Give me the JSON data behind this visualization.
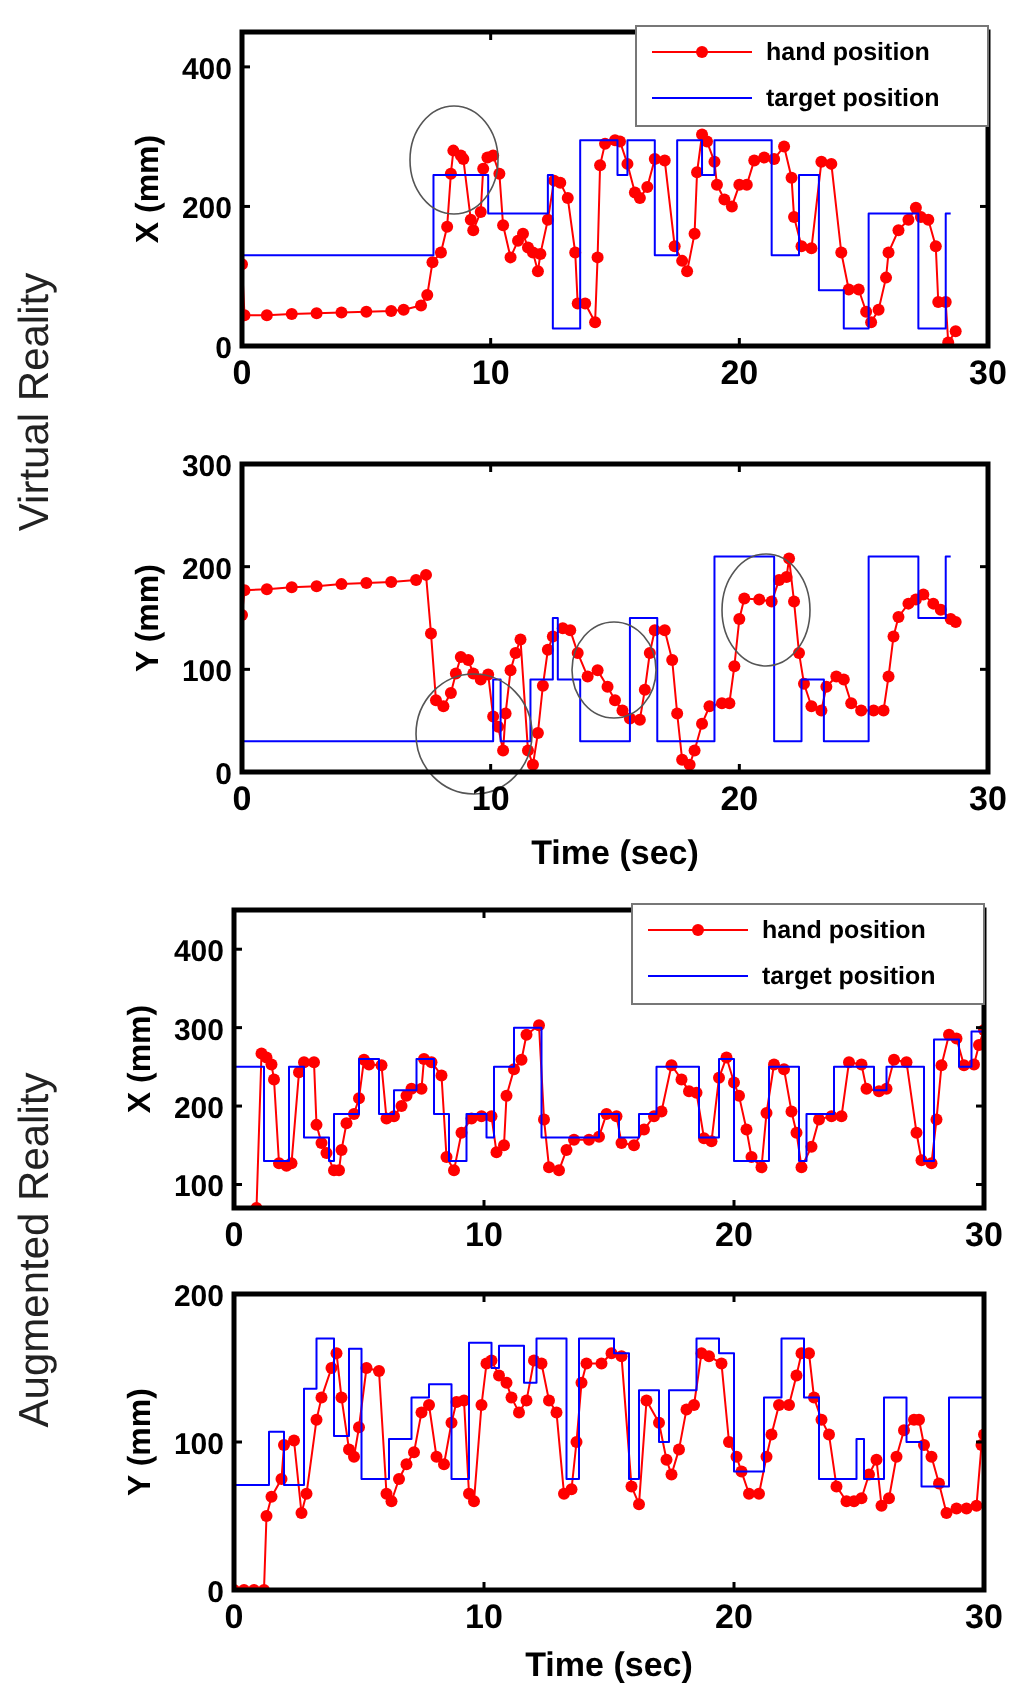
{
  "chart_data": [
    {
      "type": "line",
      "ylabel": "X (mm)",
      "xlim": [
        0,
        30
      ],
      "xticks": [
        0,
        10,
        20,
        30
      ],
      "ylim": [
        0,
        450
      ],
      "yticks": [
        0,
        200,
        400
      ],
      "legend": "top right",
      "annotations": [
        "Virtual Reality"
      ],
      "series": [
        {
          "name": "hand position",
          "color": "#ff0000",
          "marker": "circle",
          "x": [
            0,
            0.1,
            1,
            2,
            3,
            4,
            5,
            6,
            6.5,
            7.2,
            7.45,
            7.66,
            8.0,
            8.25,
            8.4,
            8.5,
            8.8,
            8.9,
            9.2,
            9.3,
            9.6,
            9.7,
            9.87,
            10.1,
            10.35,
            10.5,
            10.8,
            11.1,
            11.3,
            11.5,
            11.7,
            11.9,
            12.0,
            12.3,
            12.55,
            12.8,
            13.1,
            13.4,
            13.5,
            13.8,
            14.2,
            14.3,
            14.4,
            14.6,
            15.0,
            15.2,
            15.5,
            15.8,
            16.0,
            16.3,
            16.6,
            17.0,
            17.4,
            17.7,
            17.9,
            18.2,
            18.3,
            18.5,
            18.7,
            19.0,
            19.1,
            19.4,
            19.7,
            20.0,
            20.3,
            20.6,
            21.0,
            21.4,
            21.8,
            22.1,
            22.2,
            22.5,
            22.9,
            23.3,
            23.7,
            24.1,
            24.4,
            24.8,
            25.1,
            25.3,
            25.6,
            25.9,
            26.0,
            26.4,
            26.8,
            27.1,
            27.3,
            27.6,
            27.9,
            28.0,
            28.3,
            28.4,
            28.7
          ],
          "values": [
            117,
            44,
            44,
            46,
            47,
            48,
            49,
            50,
            52,
            58,
            73,
            120,
            134,
            171,
            247,
            280,
            273,
            268,
            181,
            166,
            192,
            254,
            270,
            273,
            247,
            173,
            127,
            151,
            161,
            141,
            134,
            107,
            132,
            181,
            237,
            234,
            212,
            134,
            61,
            61,
            34,
            127,
            259,
            290,
            295,
            293,
            261,
            220,
            212,
            228,
            268,
            266,
            143,
            122,
            107,
            161,
            249,
            303,
            293,
            264,
            231,
            210,
            200,
            231,
            231,
            266,
            270,
            268,
            286,
            241,
            185,
            143,
            140,
            264,
            261,
            134,
            81,
            81,
            49,
            34,
            52,
            98,
            134,
            166,
            181,
            198,
            185,
            181,
            143,
            63,
            63,
            5,
            21
          ]
        },
        {
          "name": "target position",
          "color": "#0000ff",
          "type": "step",
          "marker": "none",
          "x": [
            0,
            7.7,
            9.9,
            12.3,
            12.5,
            13.6,
            15.1,
            15.5,
            16.6,
            17.5,
            18.5,
            19.0,
            21.3,
            22.4,
            23.2,
            24.2,
            25.2,
            27.2,
            28.3,
            28.5
          ],
          "values": [
            130,
            245,
            190,
            245,
            25,
            295,
            245,
            295,
            130,
            295,
            245,
            295,
            130,
            245,
            80,
            25,
            190,
            25,
            190,
            190
          ]
        }
      ]
    },
    {
      "type": "line",
      "xlabel": "Time (sec)",
      "ylabel": "Y (mm)",
      "xlim": [
        0,
        30
      ],
      "xticks": [
        0,
        10,
        20,
        30
      ],
      "ylim": [
        0,
        300
      ],
      "yticks": [
        0,
        100,
        200,
        300
      ],
      "series": [
        {
          "color": "#ff0000",
          "marker": "circle",
          "x": [
            0,
            0.1,
            1,
            2,
            3,
            4,
            5,
            6,
            7,
            7.4,
            7.6,
            7.8,
            8.1,
            8.4,
            8.6,
            8.8,
            9.1,
            9.3,
            9.6,
            9.9,
            10.1,
            10.3,
            10.5,
            10.6,
            10.8,
            11.0,
            11.2,
            11.5,
            11.7,
            11.9,
            12.1,
            12.3,
            12.5,
            12.9,
            13.2,
            13.5,
            13.9,
            14.3,
            14.7,
            15.0,
            15.3,
            15.6,
            16.0,
            16.2,
            16.4,
            16.6,
            17.0,
            17.3,
            17.5,
            17.7,
            18.0,
            18.2,
            18.5,
            18.8,
            19.3,
            19.6,
            19.8,
            20.0,
            20.2,
            20.8,
            21.3,
            21.6,
            21.9,
            22.0,
            22.2,
            22.4,
            22.6,
            22.9,
            23.3,
            23.5,
            23.9,
            24.2,
            24.5,
            24.9,
            25.4,
            25.8,
            26.0,
            26.2,
            26.4,
            26.8,
            27.1,
            27.4,
            27.8,
            28.1,
            28.5,
            28.7
          ],
          "values": [
            153,
            177,
            178,
            180,
            181,
            183,
            184,
            185,
            187,
            192,
            135,
            70,
            64,
            77,
            96,
            112,
            109,
            96,
            90,
            95,
            54,
            44,
            21,
            57,
            99,
            116,
            129,
            21,
            7,
            38,
            84,
            119,
            132,
            140,
            138,
            116,
            93,
            99,
            83,
            70,
            60,
            52,
            51,
            80,
            116,
            138,
            138,
            109,
            57,
            12,
            7,
            21,
            47,
            64,
            67,
            67,
            103,
            149,
            169,
            168,
            166,
            187,
            190,
            208,
            166,
            116,
            86,
            64,
            60,
            83,
            93,
            90,
            67,
            60,
            60,
            60,
            93,
            132,
            151,
            164,
            168,
            173,
            164,
            158,
            149,
            146
          ]
        },
        {
          "color": "#0000ff",
          "type": "step",
          "marker": "none",
          "x": [
            0,
            10.1,
            10.4,
            11.6,
            12.5,
            12.7,
            13.6,
            15.6,
            16.7,
            19.0,
            21.4,
            22.5,
            23.4,
            25.2,
            27.2,
            28.3,
            28.5
          ],
          "values": [
            30,
            90,
            30,
            90,
            150,
            90,
            30,
            150,
            30,
            210,
            30,
            90,
            30,
            210,
            150,
            210,
            210
          ]
        }
      ]
    },
    {
      "type": "line",
      "ylabel": "X (mm)",
      "xlim": [
        0,
        30
      ],
      "xticks": [
        0,
        10,
        20,
        30
      ],
      "ylim": [
        70,
        450
      ],
      "yticks": [
        100,
        200,
        300,
        400
      ],
      "legend": "top right",
      "annotations": [
        "Augmented Reality"
      ],
      "series": [
        {
          "name": "hand position",
          "color": "#ff0000",
          "marker": "circle",
          "x": [
            0.9,
            1.1,
            1.3,
            1.5,
            1.6,
            1.8,
            2.1,
            2.3,
            2.6,
            2.8,
            3.2,
            3.3,
            3.5,
            3.7,
            4.0,
            4.2,
            4.3,
            4.5,
            4.8,
            5.0,
            5.2,
            5.4,
            5.9,
            6.1,
            6.4,
            6.7,
            6.9,
            7.1,
            7.5,
            7.6,
            7.9,
            8.3,
            8.5,
            8.8,
            9.1,
            9.5,
            9.9,
            10.3,
            10.5,
            10.8,
            10.9,
            11.2,
            11.5,
            11.7,
            12.2,
            12.4,
            12.6,
            13.0,
            13.3,
            13.6,
            14.2,
            14.6,
            14.9,
            15.3,
            15.5,
            16.0,
            16.4,
            16.8,
            17.1,
            17.5,
            17.9,
            18.2,
            18.5,
            18.8,
            19.1,
            19.4,
            19.7,
            20.0,
            20.2,
            20.5,
            20.7,
            21.1,
            21.3,
            21.6,
            22.0,
            22.3,
            22.5,
            22.7,
            23.1,
            23.4,
            23.9,
            24.3,
            24.6,
            25.1,
            25.3,
            25.8,
            26.1,
            26.4,
            26.9,
            27.3,
            27.5,
            27.9,
            28.1,
            28.3,
            28.6,
            28.9,
            29.2,
            29.6,
            29.8,
            30.0
          ],
          "values": [
            70,
            267,
            262,
            253,
            234,
            127,
            124,
            127,
            243,
            256,
            256,
            176,
            153,
            140,
            118,
            118,
            144,
            178,
            190,
            210,
            259,
            253,
            252,
            184,
            187,
            200,
            213,
            222,
            222,
            260,
            256,
            239,
            135,
            118,
            166,
            184,
            187,
            187,
            141,
            150,
            213,
            247,
            259,
            291,
            303,
            183,
            122,
            118,
            144,
            157,
            157,
            161,
            190,
            187,
            153,
            150,
            170,
            187,
            193,
            252,
            234,
            219,
            217,
            159,
            155,
            236,
            262,
            230,
            213,
            170,
            135,
            122,
            191,
            253,
            247,
            193,
            166,
            122,
            148,
            183,
            187,
            187,
            256,
            253,
            222,
            219,
            222,
            259,
            256,
            166,
            131,
            127,
            183,
            252,
            291,
            286,
            252,
            253,
            278,
            297
          ]
        },
        {
          "name": "target position",
          "color": "#0000ff",
          "type": "step",
          "marker": "none",
          "x": [
            0,
            1.2,
            2.2,
            2.8,
            3.8,
            4.0,
            5.0,
            5.8,
            6.4,
            7.3,
            8.0,
            8.6,
            9.3,
            10.1,
            10.4,
            11.2,
            12.3,
            14.6,
            15.4,
            16.2,
            16.9,
            18.6,
            19.4,
            20.0,
            21.4,
            22.6,
            22.9,
            24.0,
            25.6,
            26.1,
            27.6,
            28.0,
            29.0,
            29.5,
            30
          ],
          "values": [
            250,
            130,
            250,
            160,
            130,
            190,
            260,
            190,
            220,
            260,
            190,
            130,
            190,
            160,
            250,
            300,
            160,
            190,
            160,
            190,
            250,
            160,
            260,
            130,
            250,
            130,
            190,
            250,
            220,
            250,
            130,
            285,
            250,
            295,
            295
          ]
        }
      ]
    },
    {
      "type": "line",
      "xlabel": "Time (sec)",
      "ylabel": "Y (mm)",
      "xlim": [
        0,
        30
      ],
      "xticks": [
        0,
        10,
        20,
        30
      ],
      "ylim": [
        0,
        200
      ],
      "yticks": [
        0,
        100,
        200
      ],
      "series": [
        {
          "color": "#ff0000",
          "marker": "circle",
          "x": [
            0,
            0.4,
            0.8,
            1.2,
            1.3,
            1.5,
            1.9,
            2.0,
            2.4,
            2.7,
            2.9,
            3.3,
            3.5,
            3.9,
            4.1,
            4.3,
            4.6,
            4.8,
            5.0,
            5.3,
            5.8,
            6.1,
            6.3,
            6.6,
            6.9,
            7.2,
            7.5,
            7.8,
            8.1,
            8.4,
            8.7,
            8.9,
            9.2,
            9.4,
            9.6,
            9.9,
            10.1,
            10.3,
            10.6,
            10.9,
            11.1,
            11.4,
            11.7,
            12.0,
            12.3,
            12.6,
            12.9,
            13.2,
            13.5,
            13.7,
            13.9,
            14.1,
            14.7,
            15.1,
            15.5,
            15.9,
            16.2,
            16.5,
            17.0,
            17.3,
            17.5,
            17.8,
            18.1,
            18.4,
            18.7,
            19.0,
            19.5,
            19.8,
            20.1,
            20.3,
            20.6,
            21.0,
            21.3,
            21.5,
            21.8,
            22.2,
            22.5,
            22.7,
            23.0,
            23.2,
            23.5,
            23.8,
            24.1,
            24.5,
            24.8,
            25.1,
            25.4,
            25.7,
            25.9,
            26.2,
            26.5,
            26.8,
            27.2,
            27.4,
            27.6,
            27.9,
            28.2,
            28.5,
            28.9,
            29.3,
            29.7,
            29.9,
            30.0
          ],
          "values": [
            0,
            0,
            0,
            0,
            50,
            63,
            75,
            98,
            101,
            52,
            65,
            115,
            130,
            150,
            160,
            130,
            95,
            90,
            110,
            150,
            148,
            65,
            60,
            75,
            85,
            93,
            120,
            125,
            90,
            85,
            113,
            127,
            128,
            65,
            60,
            125,
            153,
            155,
            145,
            140,
            130,
            120,
            128,
            155,
            153,
            128,
            120,
            65,
            68,
            100,
            140,
            153,
            153,
            160,
            158,
            70,
            58,
            128,
            113,
            88,
            78,
            95,
            122,
            125,
            160,
            158,
            153,
            100,
            90,
            80,
            65,
            65,
            90,
            105,
            125,
            125,
            145,
            160,
            160,
            130,
            115,
            105,
            70,
            60,
            60,
            62,
            78,
            88,
            57,
            62,
            90,
            108,
            115,
            115,
            98,
            90,
            72,
            52,
            55,
            55,
            57,
            98,
            105
          ]
        },
        {
          "color": "#0000ff",
          "type": "step",
          "marker": "none",
          "x": [
            0,
            1.4,
            2.0,
            2.8,
            3.3,
            4.0,
            4.6,
            5.1,
            6.2,
            7.1,
            7.8,
            8.7,
            9.4,
            10.3,
            10.6,
            11.6,
            12.1,
            13.3,
            13.8,
            15.2,
            15.8,
            16.2,
            17.0,
            17.4,
            18.5,
            19.4,
            20.0,
            21.2,
            21.9,
            22.8,
            23.4,
            24.9,
            25.2,
            26.0,
            26.9,
            27.5,
            28.6,
            30
          ],
          "values": [
            71,
            107,
            71,
            136,
            170,
            104,
            163,
            75,
            102,
            130,
            139,
            75,
            167,
            150,
            165,
            140,
            170,
            75,
            170,
            160,
            75,
            135,
            100,
            135,
            170,
            160,
            80,
            130,
            170,
            130,
            75,
            102,
            75,
            130,
            100,
            70,
            130,
            130
          ]
        }
      ]
    }
  ]
}
